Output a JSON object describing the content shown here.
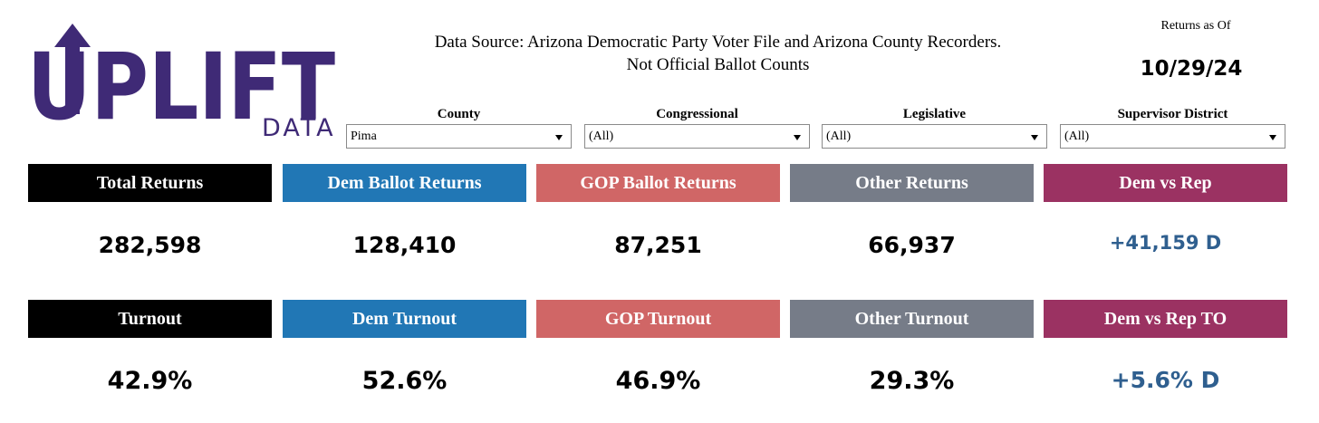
{
  "logo": {
    "word": "UPLIFT",
    "subword": "DATA",
    "color": "#3f2a76"
  },
  "header": {
    "source_line1": "Data Source: Arizona Democratic Party Voter File and Arizona County Recorders.",
    "source_line2": "Not Official Ballot Counts",
    "as_of_label": "Returns as Of",
    "as_of_date": "10/29/24"
  },
  "filters": [
    {
      "label": "County",
      "value": "Pima"
    },
    {
      "label": "Congressional",
      "value": "(All)"
    },
    {
      "label": "Legislative",
      "value": "(All)"
    },
    {
      "label": "Supervisor District",
      "value": "(All)"
    }
  ],
  "returns": [
    {
      "label": "Total Returns",
      "value": "282,598",
      "color": "#000000"
    },
    {
      "label": "Dem Ballot Returns",
      "value": "128,410",
      "color": "#2177b5"
    },
    {
      "label": "GOP Ballot Returns",
      "value": "87,251",
      "color": "#d06666"
    },
    {
      "label": "Other Returns",
      "value": "66,937",
      "color": "#767c88"
    },
    {
      "label": "Dem vs Rep",
      "value": "+41,159 D",
      "color": "#9b3262"
    }
  ],
  "turnout": [
    {
      "label": "Turnout",
      "value": "42.9%",
      "color": "#000000"
    },
    {
      "label": "Dem Turnout",
      "value": "52.6%",
      "color": "#2177b5"
    },
    {
      "label": "GOP Turnout",
      "value": "46.9%",
      "color": "#d06666"
    },
    {
      "label": "Other Turnout",
      "value": "29.3%",
      "color": "#767c88"
    },
    {
      "label": "Dem vs Rep TO",
      "value": "+5.6% D",
      "color": "#9b3262"
    }
  ],
  "accent_value_color": "#2f5f8f"
}
